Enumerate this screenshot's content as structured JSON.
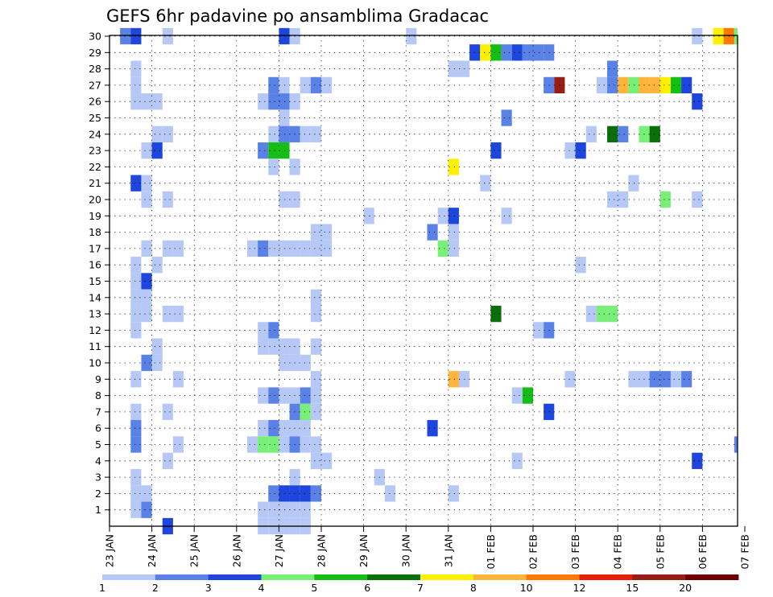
{
  "chart_data": {
    "type": "heatmap",
    "title": "GEFS 6hr padavine po ansamblima Gradacac",
    "xlabel": "",
    "ylabel": "",
    "x_ticks": [
      "23 JAN",
      "24 JAN",
      "25 JAN",
      "26 JAN",
      "27 JAN",
      "28 JAN",
      "29 JAN",
      "30 JAN",
      "31 JAN",
      "01 FEB",
      "02 FEB",
      "03 FEB",
      "04 FEB",
      "05 FEB",
      "06 FEB",
      "07 FEB"
    ],
    "y_ticks": [
      "1",
      "2",
      "3",
      "4",
      "5",
      "6",
      "7",
      "8",
      "9",
      "10",
      "11",
      "12",
      "13",
      "14",
      "15",
      "16",
      "17",
      "18",
      "19",
      "20",
      "21",
      "22",
      "23",
      "24",
      "25",
      "26",
      "27",
      "28",
      "29",
      "30"
    ],
    "grid": true,
    "steps_per_day": 4,
    "colorbar": {
      "labels": [
        "1",
        "2",
        "3",
        "4",
        "5",
        "6",
        "7",
        "8",
        "10",
        "12",
        "15",
        "20"
      ],
      "colors": [
        "#b6c8f5",
        "#5a82e6",
        "#1e46dc",
        "#78f078",
        "#14be14",
        "#0a6e0a",
        "#fff000",
        "#ffb43c",
        "#ff7800",
        "#e61e0a",
        "#961e14",
        "#6e0000"
      ]
    },
    "cells": [
      [
        30,
        2,
        2
      ],
      [
        30,
        3,
        3
      ],
      [
        30,
        6,
        1
      ],
      [
        30,
        17,
        3
      ],
      [
        30,
        18,
        1
      ],
      [
        30,
        29,
        1
      ],
      [
        30,
        56,
        1
      ],
      [
        30,
        58,
        7
      ],
      [
        30,
        59,
        9
      ],
      [
        30,
        60,
        4
      ],
      [
        30,
        61,
        1
      ],
      [
        29,
        35,
        3
      ],
      [
        29,
        36,
        7
      ],
      [
        29,
        37,
        5
      ],
      [
        29,
        38,
        2
      ],
      [
        29,
        39,
        3
      ],
      [
        29,
        40,
        2
      ],
      [
        29,
        41,
        2
      ],
      [
        29,
        42,
        2
      ],
      [
        28,
        3,
        1
      ],
      [
        28,
        33,
        1
      ],
      [
        28,
        34,
        1
      ],
      [
        28,
        48,
        2
      ],
      [
        27,
        3,
        1
      ],
      [
        27,
        16,
        2
      ],
      [
        27,
        17,
        1
      ],
      [
        27,
        19,
        1
      ],
      [
        27,
        20,
        2
      ],
      [
        27,
        21,
        1
      ],
      [
        27,
        42,
        2
      ],
      [
        27,
        43,
        11
      ],
      [
        27,
        47,
        1
      ],
      [
        27,
        48,
        2
      ],
      [
        27,
        49,
        8
      ],
      [
        27,
        50,
        4
      ],
      [
        27,
        51,
        8
      ],
      [
        27,
        52,
        8
      ],
      [
        27,
        53,
        7
      ],
      [
        27,
        54,
        5
      ],
      [
        27,
        55,
        3
      ],
      [
        26,
        3,
        1
      ],
      [
        26,
        4,
        1
      ],
      [
        26,
        5,
        1
      ],
      [
        26,
        15,
        1
      ],
      [
        26,
        16,
        2
      ],
      [
        26,
        17,
        2
      ],
      [
        26,
        18,
        1
      ],
      [
        26,
        56,
        3
      ],
      [
        25,
        17,
        1
      ],
      [
        25,
        38,
        2
      ],
      [
        24,
        5,
        1
      ],
      [
        24,
        6,
        1
      ],
      [
        24,
        16,
        1
      ],
      [
        24,
        17,
        2
      ],
      [
        24,
        18,
        2
      ],
      [
        24,
        19,
        1
      ],
      [
        24,
        20,
        1
      ],
      [
        24,
        46,
        1
      ],
      [
        24,
        48,
        6
      ],
      [
        24,
        49,
        2
      ],
      [
        24,
        51,
        4
      ],
      [
        24,
        52,
        6
      ],
      [
        23,
        4,
        1
      ],
      [
        23,
        5,
        3
      ],
      [
        23,
        15,
        2
      ],
      [
        23,
        16,
        5
      ],
      [
        23,
        17,
        5
      ],
      [
        23,
        37,
        3
      ],
      [
        23,
        44,
        1
      ],
      [
        23,
        45,
        3
      ],
      [
        22,
        16,
        1
      ],
      [
        22,
        18,
        1
      ],
      [
        22,
        33,
        7
      ],
      [
        21,
        3,
        3
      ],
      [
        21,
        4,
        1
      ],
      [
        21,
        36,
        1
      ],
      [
        21,
        50,
        1
      ],
      [
        20,
        4,
        1
      ],
      [
        20,
        6,
        1
      ],
      [
        20,
        17,
        1
      ],
      [
        20,
        18,
        1
      ],
      [
        20,
        48,
        1
      ],
      [
        20,
        49,
        1
      ],
      [
        20,
        53,
        4
      ],
      [
        20,
        56,
        1
      ],
      [
        19,
        25,
        1
      ],
      [
        19,
        32,
        1
      ],
      [
        19,
        33,
        3
      ],
      [
        19,
        38,
        1
      ],
      [
        18,
        20,
        1
      ],
      [
        18,
        21,
        1
      ],
      [
        18,
        31,
        2
      ],
      [
        18,
        33,
        1
      ],
      [
        17,
        4,
        1
      ],
      [
        17,
        6,
        1
      ],
      [
        17,
        7,
        1
      ],
      [
        17,
        14,
        1
      ],
      [
        17,
        15,
        2
      ],
      [
        17,
        16,
        1
      ],
      [
        17,
        17,
        1
      ],
      [
        17,
        18,
        1
      ],
      [
        17,
        19,
        1
      ],
      [
        17,
        20,
        1
      ],
      [
        17,
        21,
        1
      ],
      [
        17,
        32,
        4
      ],
      [
        17,
        33,
        1
      ],
      [
        16,
        3,
        1
      ],
      [
        16,
        5,
        1
      ],
      [
        16,
        45,
        1
      ],
      [
        15,
        3,
        1
      ],
      [
        15,
        4,
        3
      ],
      [
        14,
        3,
        1
      ],
      [
        14,
        4,
        1
      ],
      [
        14,
        20,
        1
      ],
      [
        13,
        3,
        1
      ],
      [
        13,
        4,
        1
      ],
      [
        13,
        6,
        1
      ],
      [
        13,
        7,
        1
      ],
      [
        13,
        20,
        1
      ],
      [
        13,
        37,
        6
      ],
      [
        13,
        46,
        1
      ],
      [
        13,
        47,
        4
      ],
      [
        13,
        48,
        4
      ],
      [
        12,
        3,
        1
      ],
      [
        12,
        15,
        1
      ],
      [
        12,
        16,
        2
      ],
      [
        12,
        41,
        1
      ],
      [
        12,
        42,
        2
      ],
      [
        11,
        5,
        1
      ],
      [
        11,
        15,
        1
      ],
      [
        11,
        16,
        1
      ],
      [
        11,
        17,
        1
      ],
      [
        11,
        18,
        1
      ],
      [
        11,
        20,
        1
      ],
      [
        10,
        4,
        2
      ],
      [
        10,
        5,
        1
      ],
      [
        10,
        17,
        1
      ],
      [
        10,
        18,
        1
      ],
      [
        10,
        19,
        1
      ],
      [
        9,
        3,
        1
      ],
      [
        9,
        7,
        1
      ],
      [
        9,
        20,
        1
      ],
      [
        9,
        33,
        8
      ],
      [
        9,
        34,
        1
      ],
      [
        9,
        44,
        1
      ],
      [
        9,
        50,
        1
      ],
      [
        9,
        51,
        1
      ],
      [
        9,
        52,
        2
      ],
      [
        9,
        53,
        2
      ],
      [
        9,
        54,
        1
      ],
      [
        9,
        55,
        2
      ],
      [
        8,
        15,
        1
      ],
      [
        8,
        16,
        2
      ],
      [
        8,
        17,
        1
      ],
      [
        8,
        18,
        1
      ],
      [
        8,
        19,
        2
      ],
      [
        8,
        20,
        1
      ],
      [
        8,
        39,
        1
      ],
      [
        8,
        40,
        5
      ],
      [
        7,
        3,
        1
      ],
      [
        7,
        6,
        1
      ],
      [
        7,
        18,
        2
      ],
      [
        7,
        19,
        4
      ],
      [
        7,
        20,
        1
      ],
      [
        7,
        42,
        3
      ],
      [
        6,
        3,
        2
      ],
      [
        6,
        15,
        1
      ],
      [
        6,
        16,
        2
      ],
      [
        6,
        17,
        1
      ],
      [
        6,
        18,
        1
      ],
      [
        6,
        19,
        1
      ],
      [
        6,
        31,
        3
      ],
      [
        5,
        3,
        2
      ],
      [
        5,
        7,
        1
      ],
      [
        5,
        14,
        1
      ],
      [
        5,
        15,
        4
      ],
      [
        5,
        16,
        4
      ],
      [
        5,
        17,
        1
      ],
      [
        5,
        18,
        2
      ],
      [
        5,
        19,
        1
      ],
      [
        5,
        20,
        1
      ],
      [
        5,
        60,
        2
      ],
      [
        4,
        6,
        1
      ],
      [
        4,
        20,
        1
      ],
      [
        4,
        21,
        1
      ],
      [
        4,
        39,
        1
      ],
      [
        4,
        56,
        3
      ],
      [
        3,
        3,
        1
      ],
      [
        3,
        18,
        1
      ],
      [
        3,
        26,
        1
      ],
      [
        2,
        3,
        1
      ],
      [
        2,
        4,
        1
      ],
      [
        2,
        16,
        2
      ],
      [
        2,
        17,
        3
      ],
      [
        2,
        18,
        3
      ],
      [
        2,
        19,
        3
      ],
      [
        2,
        20,
        2
      ],
      [
        2,
        27,
        1
      ],
      [
        2,
        33,
        1
      ],
      [
        1,
        3,
        1
      ],
      [
        1,
        4,
        2
      ],
      [
        1,
        15,
        1
      ],
      [
        1,
        16,
        1
      ],
      [
        1,
        17,
        1
      ],
      [
        1,
        18,
        1
      ],
      [
        1,
        19,
        1
      ],
      [
        0,
        15,
        1
      ],
      [
        0,
        16,
        1
      ],
      [
        0,
        17,
        1
      ],
      [
        0,
        18,
        1
      ],
      [
        0,
        19,
        1
      ],
      [
        0,
        6,
        3
      ]
    ]
  }
}
